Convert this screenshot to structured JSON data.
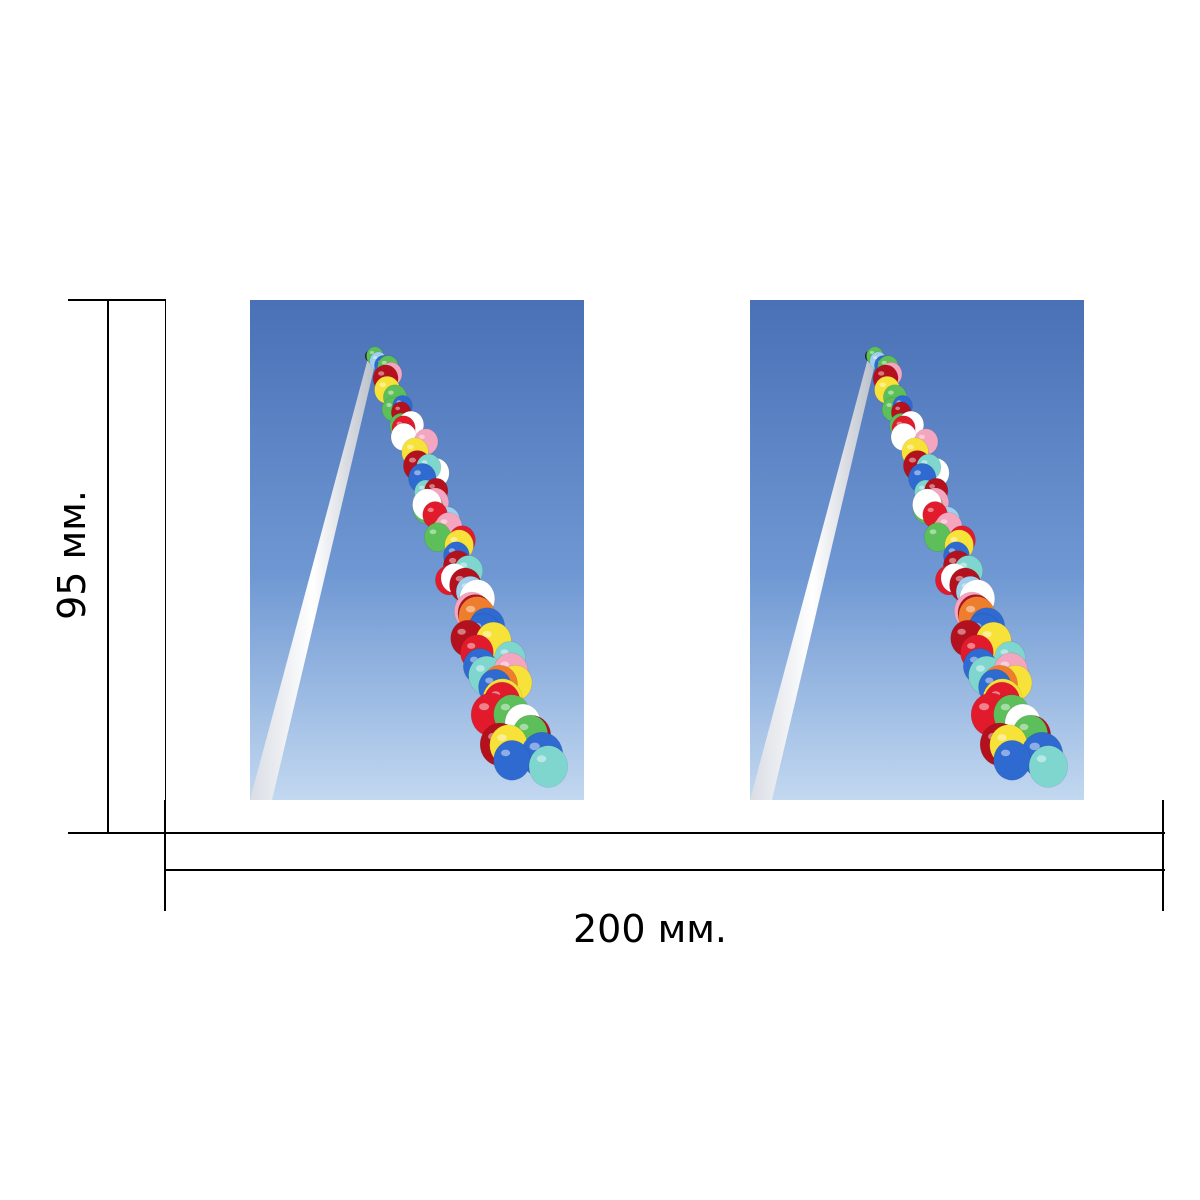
{
  "dimensions": {
    "height_label": "95 мм.",
    "width_label": "200 мм."
  },
  "photos": [
    {
      "subject": "balloon-garland-on-pole"
    },
    {
      "subject": "balloon-garland-on-pole"
    }
  ],
  "colors": {
    "sky_top": "#4f74b8",
    "sky_bottom": "#bcd3ee",
    "balloons": [
      "#e21b2c",
      "#f7e23a",
      "#5cbf5a",
      "#7fd6cf",
      "#f4a6c0",
      "#ee7e2d",
      "#ffffff",
      "#2f6ad0",
      "#9fd0ee",
      "#b3111e"
    ]
  }
}
